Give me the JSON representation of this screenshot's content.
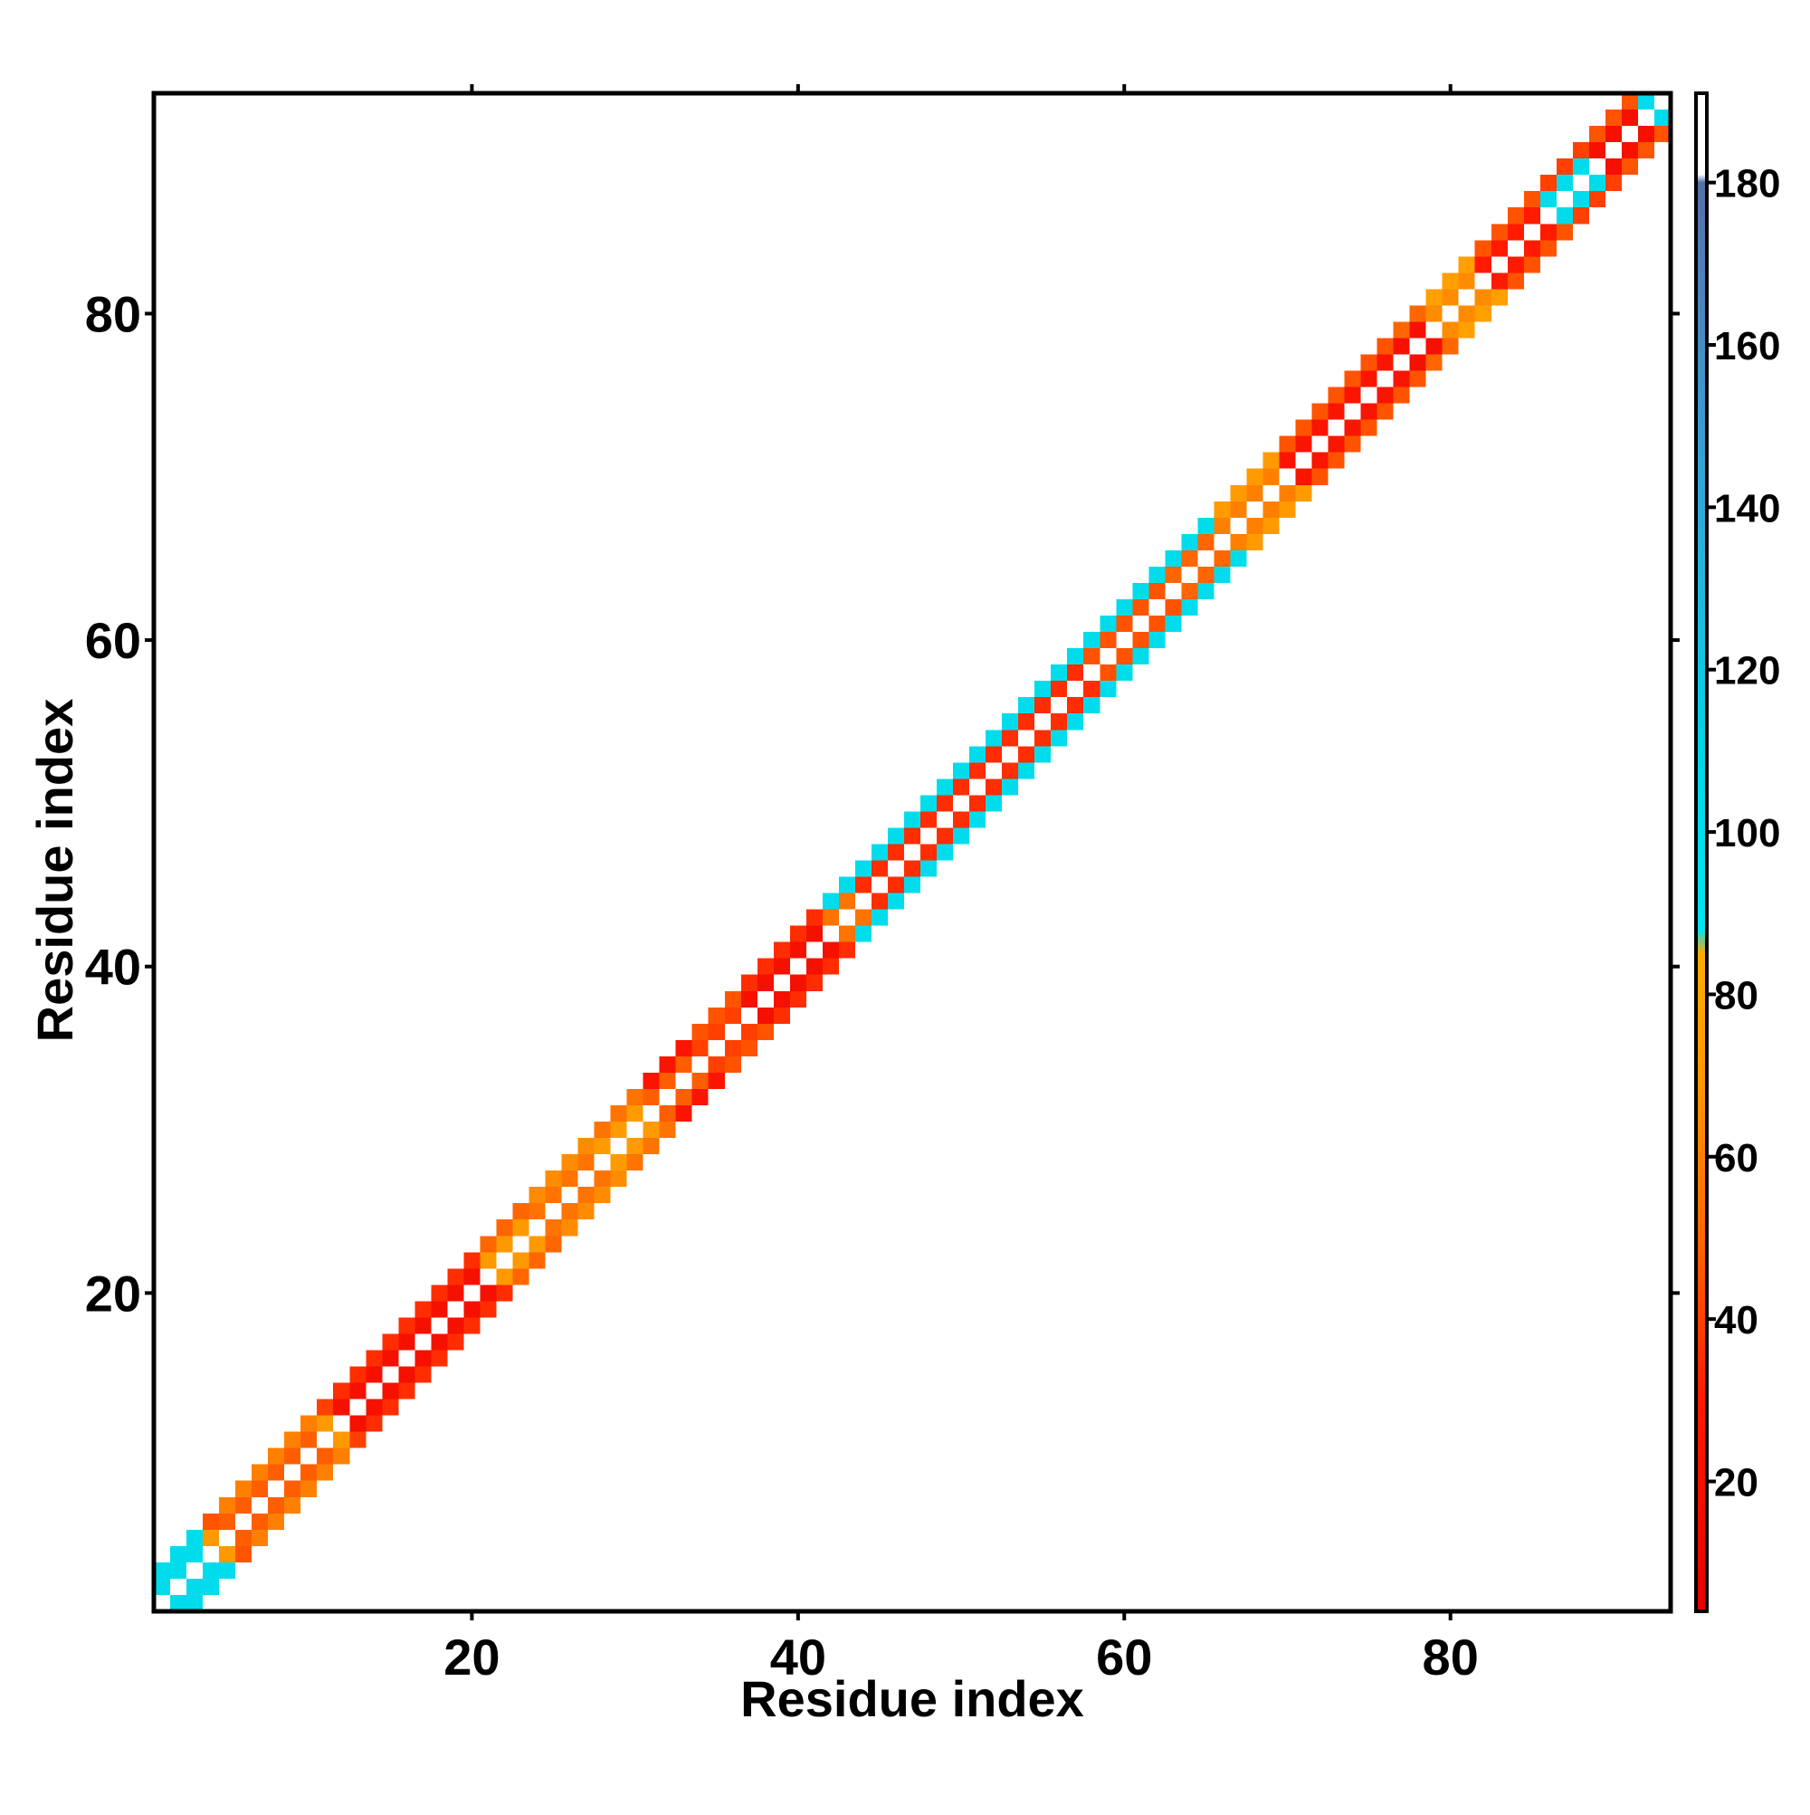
{
  "chart_data": {
    "type": "heatmap",
    "title": "",
    "xlabel": "Residue index",
    "ylabel": "Residue index",
    "xlim": [
      0.5,
      93.5
    ],
    "ylim": [
      0.5,
      93.5
    ],
    "x_ticks": [
      20,
      40,
      60,
      80
    ],
    "y_ticks": [
      20,
      40,
      60,
      80
    ],
    "grid": false,
    "colorbar": {
      "ticks": [
        20,
        40,
        60,
        80,
        100,
        120,
        140,
        160,
        180
      ],
      "range": [
        4,
        191
      ],
      "position": "right",
      "stops": [
        {
          "value": 4,
          "color": "#e60000"
        },
        {
          "value": 30,
          "color": "#ff1a00"
        },
        {
          "value": 50,
          "color": "#ff6600"
        },
        {
          "value": 70,
          "color": "#ff9900"
        },
        {
          "value": 85,
          "color": "#ffaa00"
        },
        {
          "value": 88,
          "color": "#00e5ee"
        },
        {
          "value": 110,
          "color": "#00d5e8"
        },
        {
          "value": 130,
          "color": "#20b8e0"
        },
        {
          "value": 150,
          "color": "#3a9cd0"
        },
        {
          "value": 170,
          "color": "#4f7fb8"
        },
        {
          "value": 180,
          "color": "#5570a8"
        },
        {
          "value": 181,
          "color": "#ffffff"
        },
        {
          "value": 191,
          "color": "#ffffff"
        }
      ]
    },
    "diagonal_value": 191,
    "segments": [
      {
        "start": 1,
        "end": 4,
        "off1": 100,
        "off2": 100
      },
      {
        "start": 4,
        "end": 5,
        "off1": 70,
        "off2": 45
      },
      {
        "start": 5,
        "end": 11,
        "off1": 48,
        "off2": 60
      },
      {
        "start": 11,
        "end": 12,
        "off1": 70,
        "off2": 40
      },
      {
        "start": 12,
        "end": 21,
        "off1": 20,
        "off2": 35
      },
      {
        "start": 21,
        "end": 24,
        "off1": 70,
        "off2": 50
      },
      {
        "start": 24,
        "end": 28,
        "off1": 55,
        "off2": 65
      },
      {
        "start": 28,
        "end": 31,
        "off1": 72,
        "off2": 55
      },
      {
        "start": 31,
        "end": 34,
        "off1": 48,
        "off2": 25
      },
      {
        "start": 34,
        "end": 37,
        "off1": 40,
        "off2": 45
      },
      {
        "start": 37,
        "end": 42,
        "off1": 20,
        "off2": 35
      },
      {
        "start": 42,
        "end": 44,
        "off1": 55,
        "off2": 100
      },
      {
        "start": 44,
        "end": 58,
        "off1": 35,
        "off2": 100
      },
      {
        "start": 58,
        "end": 63,
        "off1": 45,
        "off2": 100
      },
      {
        "start": 63,
        "end": 66,
        "off1": 50,
        "off2": 100
      },
      {
        "start": 66,
        "end": 70,
        "off1": 60,
        "off2": 72
      },
      {
        "start": 70,
        "end": 77,
        "off1": 25,
        "off2": 45
      },
      {
        "start": 77,
        "end": 79,
        "off1": 20,
        "off2": 50
      },
      {
        "start": 79,
        "end": 82,
        "off1": 65,
        "off2": 75
      },
      {
        "start": 82,
        "end": 86,
        "off1": 30,
        "off2": 45
      },
      {
        "start": 86,
        "end": 89,
        "off1": 100,
        "off2": 40
      },
      {
        "start": 89,
        "end": 92,
        "off1": 20,
        "off2": 45
      },
      {
        "start": 92,
        "end": 93,
        "off1": 100,
        "off2": 50
      }
    ]
  }
}
